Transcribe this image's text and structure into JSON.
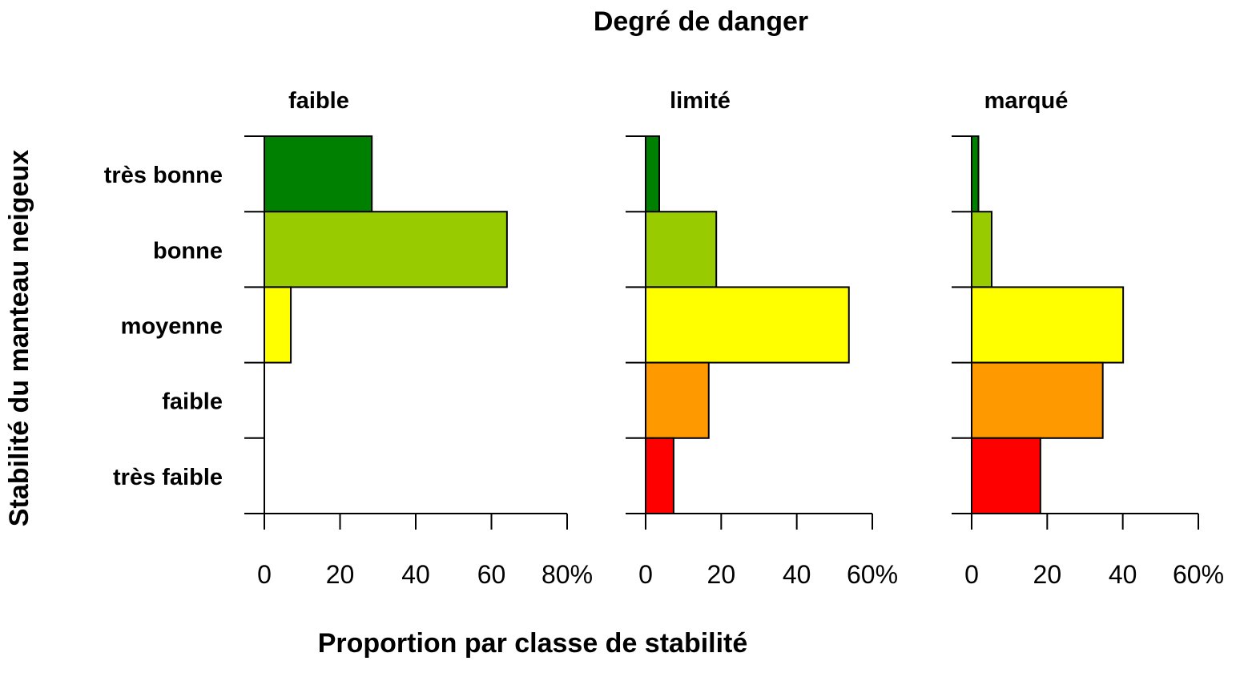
{
  "chart_data": {
    "type": "bar",
    "orientation": "horizontal",
    "title": "Degré de danger",
    "xlabel": "Proportion par classe de stabilité",
    "ylabel": "Stabilité du manteau neigeux",
    "categories": [
      "très bonne",
      "bonne",
      "moyenne",
      "faible",
      "très faible"
    ],
    "category_colors": [
      "#008000",
      "#99cc00",
      "#ffff00",
      "#ff9900",
      "#ff0000"
    ],
    "grid": false,
    "panels": [
      {
        "title": "faible",
        "values": [
          28.4,
          64.1,
          7.0,
          0,
          0
        ],
        "xlim": [
          0,
          80
        ],
        "xticks": [
          "0",
          "20",
          "40",
          "60",
          "80%"
        ]
      },
      {
        "title": "limité",
        "values": [
          3.6,
          18.7,
          53.8,
          16.7,
          7.4
        ],
        "xlim": [
          0,
          60
        ],
        "xticks": [
          "0",
          "20",
          "40",
          "60%"
        ]
      },
      {
        "title": "marqué",
        "values": [
          1.8,
          5.3,
          40.1,
          34.7,
          18.2
        ],
        "xlim": [
          0,
          60
        ],
        "xticks": [
          "0",
          "20",
          "40",
          "60%"
        ]
      }
    ]
  }
}
